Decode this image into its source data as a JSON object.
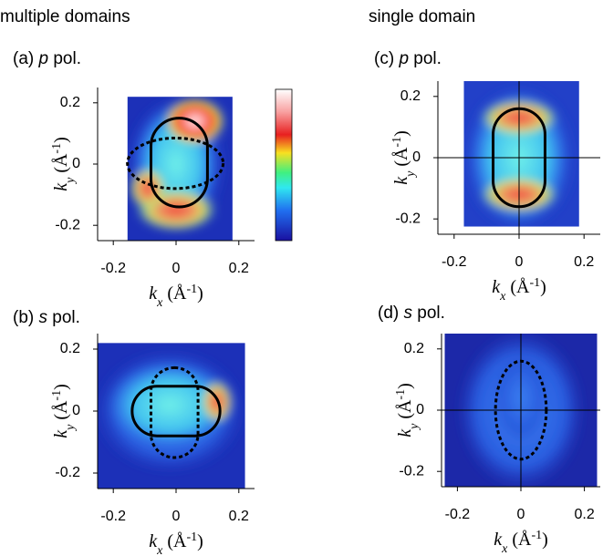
{
  "columns": [
    "multiple domains",
    "single domain"
  ],
  "chart_data": [
    {
      "type": "heatmap",
      "title": [
        "(a) ",
        "p",
        " pol."
      ],
      "x_label": [
        "k",
        "x",
        " (Å",
        "-1",
        ")"
      ],
      "y_label": [
        "k",
        "y",
        " (Å",
        "-1",
        ")"
      ],
      "xlim": [
        -0.25,
        0.25
      ],
      "ylim": [
        -0.25,
        0.25
      ],
      "xticks": [
        -0.2,
        0,
        0.2
      ],
      "yticks": [
        -0.2,
        0,
        0.2
      ],
      "colorbar": true,
      "crosshair": false
    },
    {
      "type": "heatmap",
      "title": [
        "(b) ",
        "s",
        " pol."
      ],
      "x_label": [
        "k",
        "x",
        " (Å",
        "-1",
        ")"
      ],
      "y_label": [
        "k",
        "y",
        " (Å",
        "-1",
        ")"
      ],
      "xlim": [
        -0.25,
        0.25
      ],
      "ylim": [
        -0.25,
        0.25
      ],
      "xticks": [
        -0.2,
        0,
        0.2
      ],
      "yticks": [
        -0.2,
        0,
        0.2
      ],
      "colorbar": false,
      "crosshair": false
    },
    {
      "type": "heatmap",
      "title": [
        "(c) ",
        "p",
        " pol."
      ],
      "x_label": [
        "k",
        "x",
        " (Å",
        "-1",
        ")"
      ],
      "y_label": [
        "k",
        "y",
        " (Å",
        "-1",
        ")"
      ],
      "xlim": [
        -0.25,
        0.25
      ],
      "ylim": [
        -0.25,
        0.25
      ],
      "xticks": [
        -0.2,
        0,
        0.2
      ],
      "yticks": [
        -0.2,
        0,
        0.2
      ],
      "colorbar": false,
      "crosshair": true
    },
    {
      "type": "heatmap",
      "title": [
        "(d) ",
        "s",
        " pol."
      ],
      "x_label": [
        "k",
        "x",
        " (Å",
        "-1",
        ")"
      ],
      "y_label": [
        "k",
        "y",
        " (Å",
        "-1",
        ")"
      ],
      "xlim": [
        -0.25,
        0.25
      ],
      "ylim": [
        -0.25,
        0.25
      ],
      "xticks": [
        -0.2,
        0,
        0.2
      ],
      "yticks": [
        -0.2,
        0,
        0.2
      ],
      "colorbar": false,
      "crosshair": true
    }
  ]
}
